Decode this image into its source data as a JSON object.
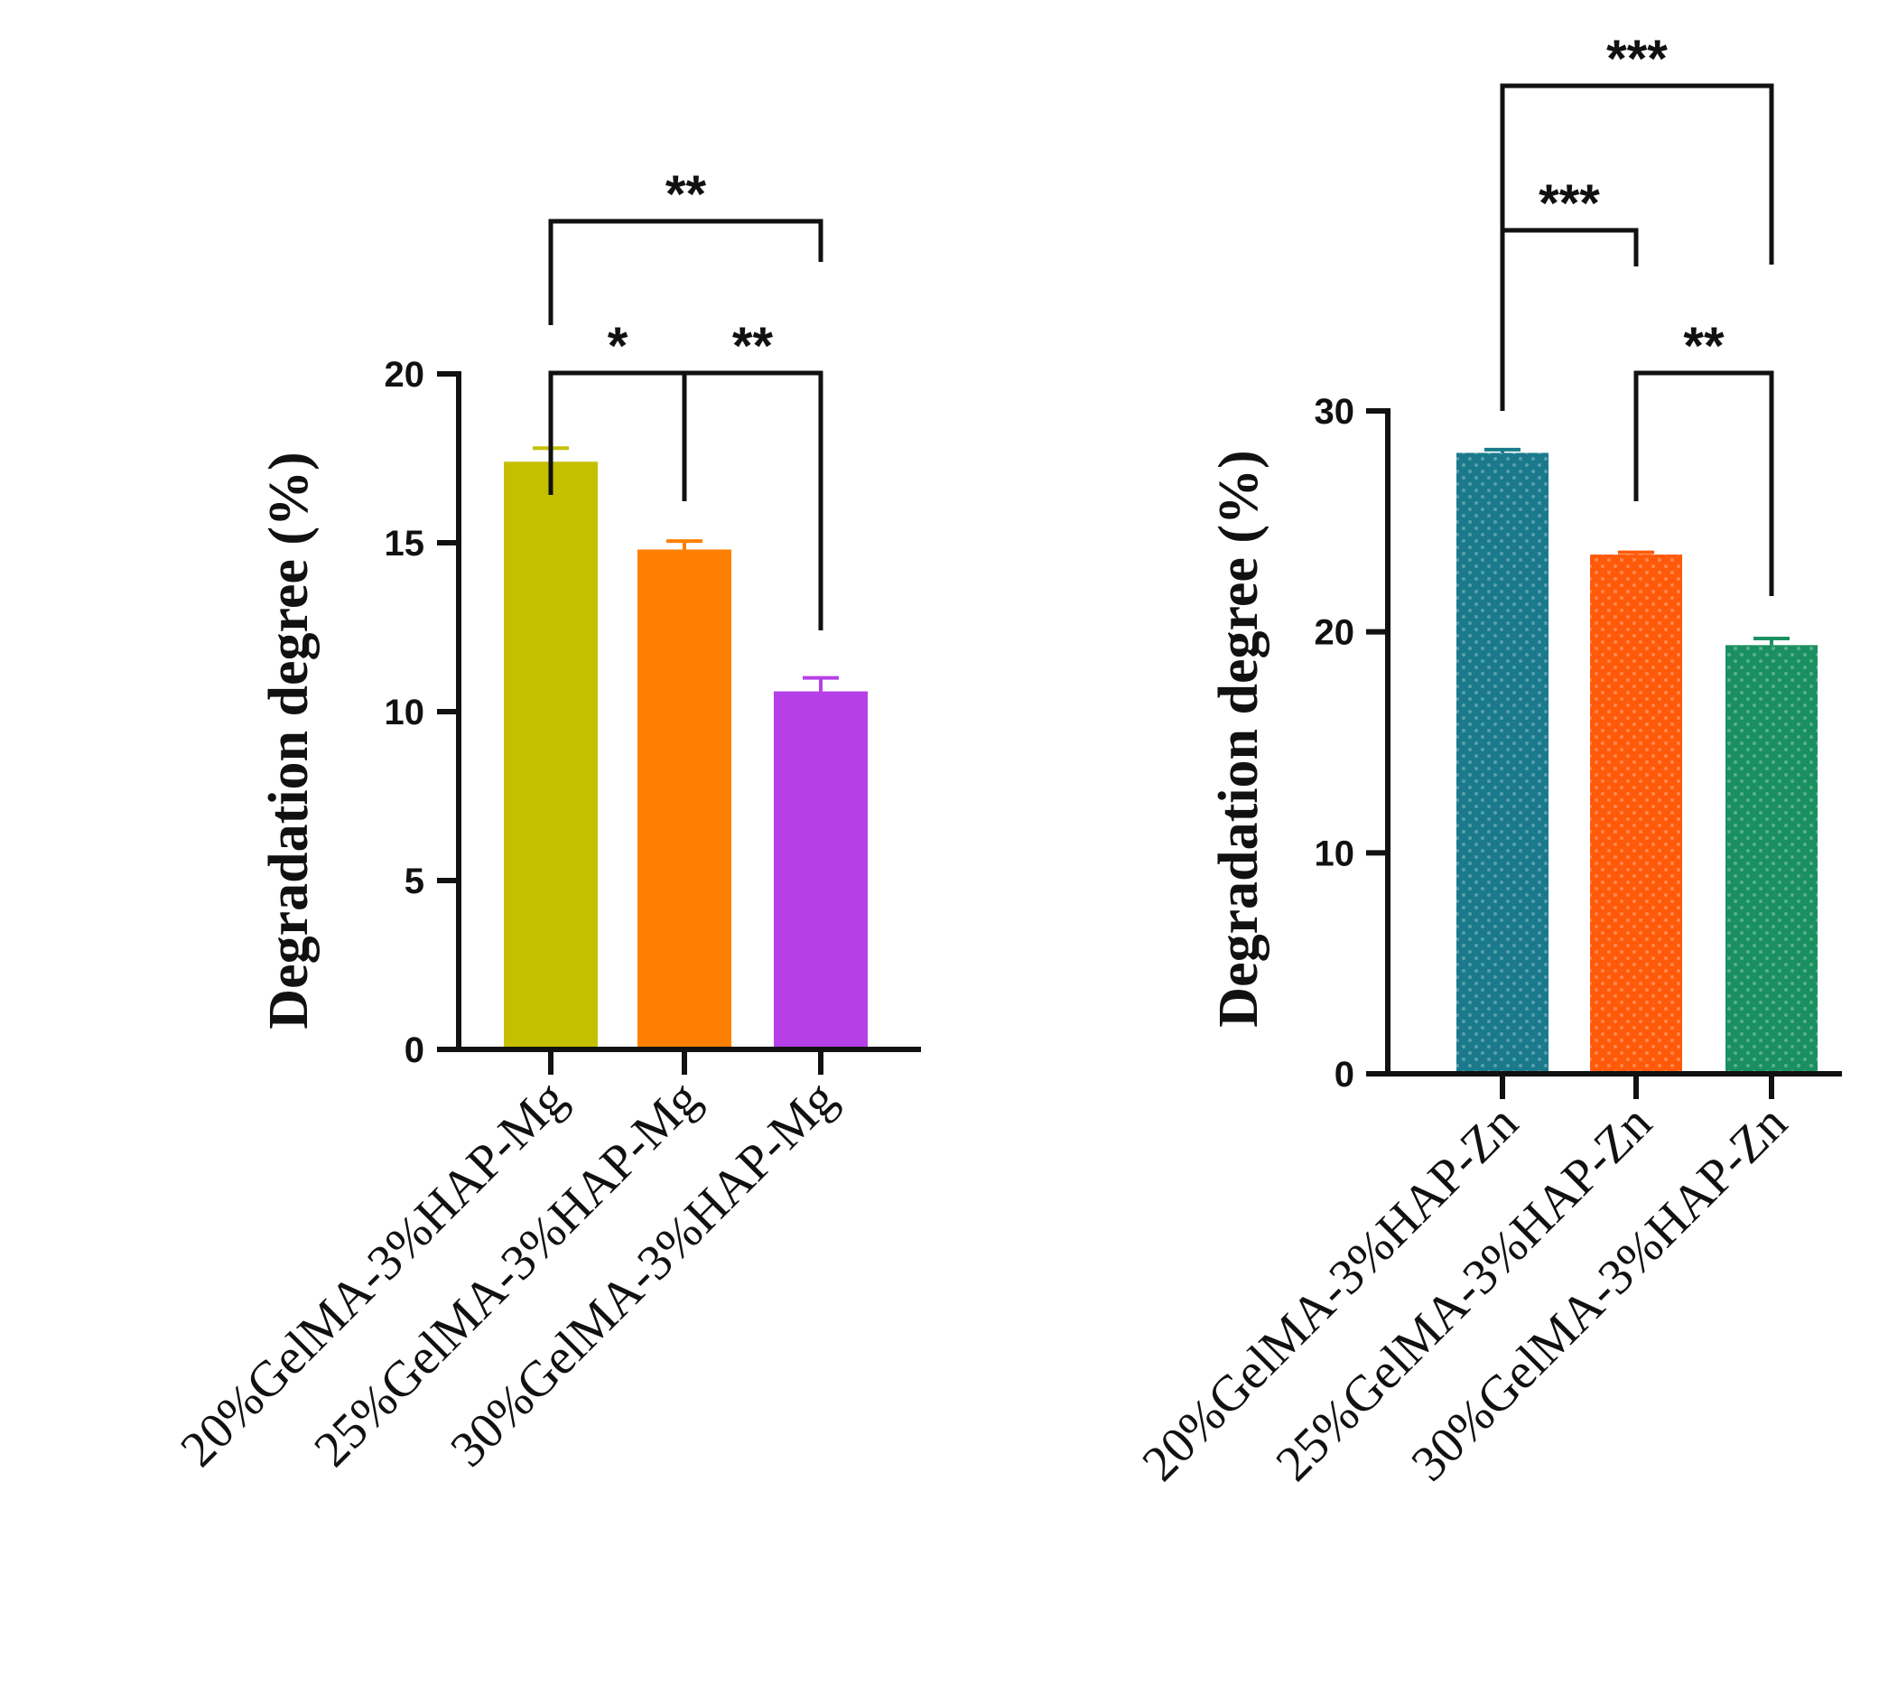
{
  "chart_data": [
    {
      "type": "bar",
      "title": "",
      "xlabel": "",
      "ylabel": "Degradation degree (%)",
      "ylim": [
        0,
        20
      ],
      "yticks": [
        0,
        5,
        10,
        15,
        20
      ],
      "categories": [
        "20%GelMA-3%HAP-Mg",
        "25%GelMA-3%HAP-Mg",
        "30%GelMA-3%HAP-Mg"
      ],
      "values": [
        17.4,
        14.8,
        10.6
      ],
      "errors": [
        0.4,
        0.25,
        0.4
      ],
      "colors": [
        "#c4c000",
        "#ff8000",
        "#b640e8"
      ],
      "fill_pattern": "solid",
      "grid": false,
      "significance": [
        {
          "from": 0,
          "to": 1,
          "label": "*"
        },
        {
          "from": 1,
          "to": 2,
          "label": "**"
        },
        {
          "from": 0,
          "to": 2,
          "label": "**"
        }
      ]
    },
    {
      "type": "bar",
      "title": "",
      "xlabel": "",
      "ylabel": "Degradation degree (%)",
      "ylim": [
        0,
        30
      ],
      "yticks": [
        0,
        10,
        20,
        30
      ],
      "categories": [
        "20%GelMA-3%HAP-Zn",
        "25%GelMA-3%HAP-Zn",
        "30%GelMA-3%HAP-Zn"
      ],
      "values": [
        28.1,
        23.5,
        19.4
      ],
      "errors": [
        0.15,
        0.1,
        0.3
      ],
      "colors": [
        "#1a7a8c",
        "#ff5a0a",
        "#1a9060"
      ],
      "fill_pattern": "dotted",
      "grid": false,
      "significance": [
        {
          "from": 0,
          "to": 1,
          "label": "***"
        },
        {
          "from": 1,
          "to": 2,
          "label": "**"
        },
        {
          "from": 0,
          "to": 2,
          "label": "***"
        }
      ]
    }
  ]
}
